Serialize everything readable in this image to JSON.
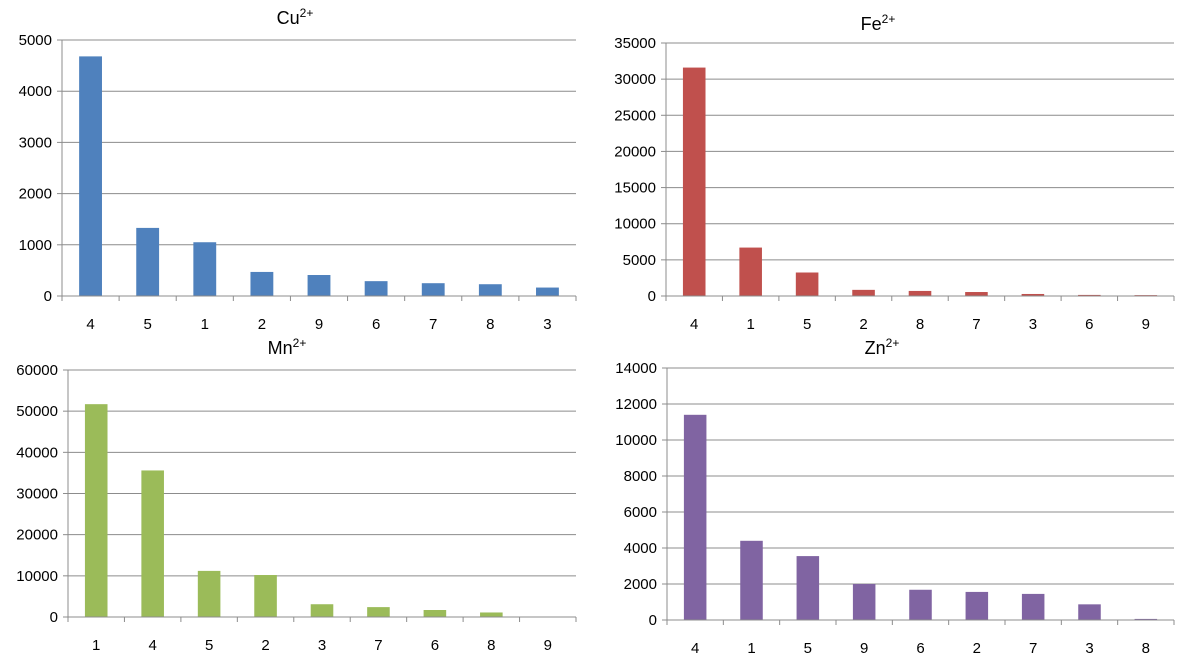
{
  "chart_data": [
    {
      "type": "bar",
      "title": "Cu",
      "title_superscript": "2+",
      "categories": [
        "4",
        "5",
        "1",
        "2",
        "9",
        "6",
        "7",
        "8",
        "3"
      ],
      "values": [
        4680,
        1330,
        1050,
        470,
        410,
        290,
        250,
        230,
        165
      ],
      "ylim": [
        0,
        5000
      ],
      "yticks": [
        "0",
        "1000",
        "2000",
        "3000",
        "4000",
        "5000"
      ],
      "grid": true,
      "color": "#4f81bd"
    },
    {
      "type": "bar",
      "title": "Fe",
      "title_superscript": "2+",
      "categories": [
        "4",
        "1",
        "5",
        "2",
        "8",
        "7",
        "3",
        "6",
        "9"
      ],
      "values": [
        31600,
        6700,
        3250,
        850,
        700,
        550,
        280,
        150,
        120
      ],
      "ylim": [
        0,
        35000
      ],
      "yticks": [
        "0",
        "5000",
        "10000",
        "15000",
        "20000",
        "25000",
        "30000",
        "35000"
      ],
      "grid": true,
      "color": "#c0504d"
    },
    {
      "type": "bar",
      "title": "Mn",
      "title_superscript": "2+",
      "categories": [
        "1",
        "4",
        "5",
        "2",
        "3",
        "7",
        "6",
        "8",
        "9"
      ],
      "values": [
        51700,
        35600,
        11200,
        10200,
        3100,
        2400,
        1700,
        1100,
        0
      ],
      "ylim": [
        0,
        60000
      ],
      "yticks": [
        "0",
        "10000",
        "20000",
        "30000",
        "40000",
        "50000",
        "60000"
      ],
      "grid": true,
      "color": "#9bbb59"
    },
    {
      "type": "bar",
      "title": "Zn",
      "title_superscript": "2+",
      "categories": [
        "4",
        "1",
        "5",
        "9",
        "6",
        "2",
        "7",
        "3",
        "8"
      ],
      "values": [
        11400,
        4400,
        3550,
        2000,
        1680,
        1560,
        1450,
        870,
        60
      ],
      "ylim": [
        0,
        14000
      ],
      "yticks": [
        "0",
        "2000",
        "4000",
        "6000",
        "8000",
        "10000",
        "12000",
        "14000"
      ],
      "grid": true,
      "color": "#8064a2"
    }
  ]
}
